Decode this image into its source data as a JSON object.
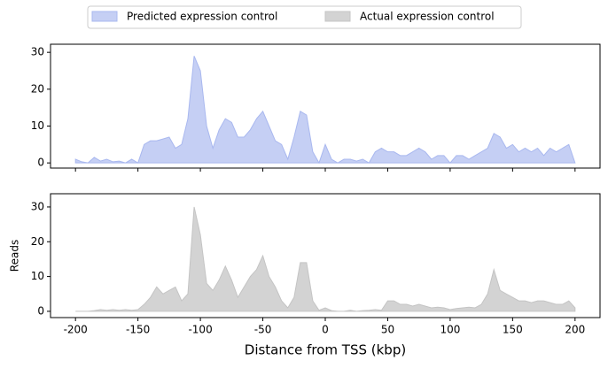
{
  "chart_data": [
    {
      "type": "area",
      "x": [
        -200,
        -195,
        -190,
        -185,
        -180,
        -175,
        -170,
        -165,
        -160,
        -155,
        -150,
        -145,
        -140,
        -135,
        -130,
        -125,
        -120,
        -115,
        -110,
        -105,
        -100,
        -95,
        -90,
        -85,
        -80,
        -75,
        -70,
        -65,
        -60,
        -55,
        -50,
        -45,
        -40,
        -35,
        -30,
        -25,
        -20,
        -15,
        -10,
        -5,
        0,
        5,
        10,
        15,
        20,
        25,
        30,
        35,
        40,
        45,
        50,
        55,
        60,
        65,
        70,
        75,
        80,
        85,
        90,
        95,
        100,
        105,
        110,
        115,
        120,
        125,
        130,
        135,
        140,
        145,
        150,
        155,
        160,
        165,
        170,
        175,
        180,
        185,
        190,
        195,
        200
      ],
      "series": [
        {
          "name": "Predicted expression control",
          "color": "#c5cff4",
          "edge": "#a9b8ef",
          "values": [
            1,
            0.3,
            0,
            1.5,
            0.5,
            1,
            0.3,
            0.5,
            0,
            1,
            0,
            5,
            6,
            6,
            6.5,
            7,
            4,
            5,
            12,
            29,
            25,
            10,
            4,
            9,
            12,
            11,
            7,
            7,
            9,
            12,
            14,
            10,
            6,
            5,
            1,
            7,
            14,
            13,
            3,
            0,
            5,
            1,
            0,
            1,
            1,
            0.5,
            1,
            0,
            3,
            4,
            3,
            3,
            2,
            2,
            3,
            4,
            3,
            1,
            2,
            2,
            0,
            2,
            2,
            1,
            2,
            3,
            4,
            8,
            7,
            4,
            5,
            3,
            4,
            3,
            4,
            2,
            4,
            3,
            4,
            5,
            0
          ]
        }
      ],
      "xlim": [
        -220,
        220
      ],
      "xticks": [
        -200,
        -150,
        -100,
        -50,
        0,
        50,
        100,
        150,
        200
      ],
      "ylim": [
        -1.4,
        32.2
      ],
      "yticks": [
        0,
        10,
        20,
        30
      ]
    },
    {
      "type": "area",
      "x": [
        -200,
        -195,
        -190,
        -185,
        -180,
        -175,
        -170,
        -165,
        -160,
        -155,
        -150,
        -145,
        -140,
        -135,
        -130,
        -125,
        -120,
        -115,
        -110,
        -105,
        -100,
        -95,
        -90,
        -85,
        -80,
        -75,
        -70,
        -65,
        -60,
        -55,
        -50,
        -45,
        -40,
        -35,
        -30,
        -25,
        -20,
        -15,
        -10,
        -5,
        0,
        5,
        10,
        15,
        20,
        25,
        30,
        35,
        40,
        45,
        50,
        55,
        60,
        65,
        70,
        75,
        80,
        85,
        90,
        95,
        100,
        105,
        110,
        115,
        120,
        125,
        130,
        135,
        140,
        145,
        150,
        155,
        160,
        165,
        170,
        175,
        180,
        185,
        190,
        195,
        200
      ],
      "series": [
        {
          "name": "Actual expression control",
          "color": "#d3d3d3",
          "edge": "#c4c4c4",
          "values": [
            0,
            0,
            0,
            0.2,
            0.5,
            0.3,
            0.5,
            0.3,
            0.5,
            0.3,
            0.5,
            2,
            4,
            7,
            5,
            6,
            7,
            3,
            5,
            30,
            22,
            8,
            6,
            9,
            13,
            9,
            4,
            7,
            10,
            12,
            16,
            10,
            7,
            3,
            1,
            4,
            14,
            14,
            3,
            0.3,
            1,
            0.2,
            0,
            0,
            0.3,
            0,
            0.2,
            0.3,
            0.5,
            0.3,
            3,
            3,
            2,
            2,
            1.5,
            2,
            1.5,
            1,
            1.2,
            1,
            0.5,
            0.8,
            1,
            1.2,
            1,
            2,
            5,
            12,
            6,
            5,
            4,
            3,
            3,
            2.5,
            3,
            3,
            2.5,
            2,
            2,
            3,
            1
          ]
        }
      ],
      "xlim": [
        -220,
        220
      ],
      "xticks": [
        -200,
        -150,
        -100,
        -50,
        0,
        50,
        100,
        150,
        200
      ],
      "ylim": [
        -1.8,
        33.8
      ],
      "yticks": [
        0,
        10,
        20,
        30
      ],
      "xlabel": "Distance from TSS (kbp)",
      "ylabel": "Reads"
    }
  ]
}
